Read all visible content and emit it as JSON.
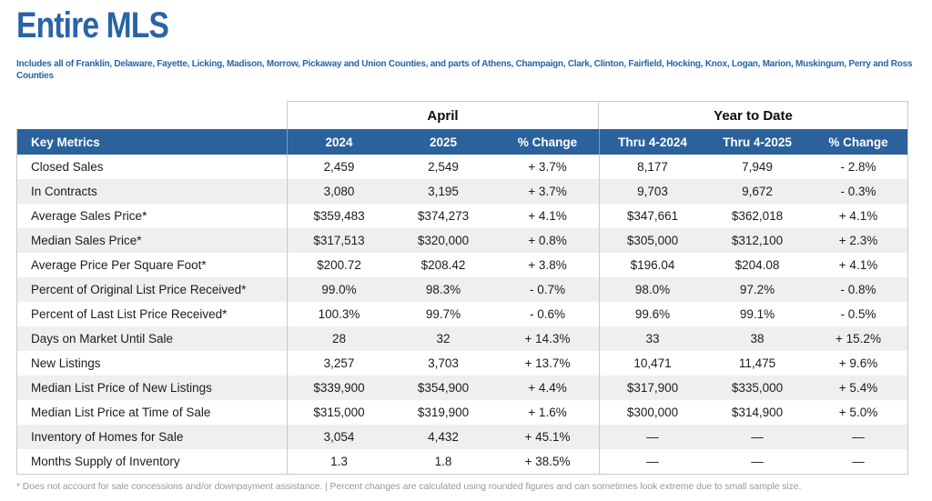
{
  "page": {
    "title": "Entire MLS",
    "subtitle": "Includes all of Franklin, Delaware, Fayette, Licking, Madison, Morrow, Pickaway and Union Counties, and parts of Athens, Champaign, Clark, Clinton, Fairfield, Hocking, Knox, Logan, Marion, Muskingum, Perry and Ross Counties",
    "footnote": "* Does not account for sale concessions and/or downpayment assistance. | Percent changes are calculated using rounded figures and can sometimes look extreme due to small sample size."
  },
  "colors": {
    "title_blue": "#2a64a6",
    "header_bar_blue": "#2b629c",
    "alt_row_gray": "#efefef",
    "border_gray": "#c9c9c9",
    "footnote_gray": "#9a9a9a",
    "body_text": "#1c1c1c"
  },
  "table": {
    "group_headers": {
      "april": "April",
      "ytd": "Year to Date"
    },
    "columns": [
      "Key Metrics",
      "2024",
      "2025",
      "% Change",
      "Thru 4-2024",
      "Thru 4-2025",
      "% Change"
    ],
    "rows": [
      [
        "Closed Sales",
        "2,459",
        "2,549",
        "+ 3.7%",
        "8,177",
        "7,949",
        "- 2.8%"
      ],
      [
        "In Contracts",
        "3,080",
        "3,195",
        "+ 3.7%",
        "9,703",
        "9,672",
        "- 0.3%"
      ],
      [
        "Average Sales Price*",
        "$359,483",
        "$374,273",
        "+ 4.1%",
        "$347,661",
        "$362,018",
        "+ 4.1%"
      ],
      [
        "Median Sales Price*",
        "$317,513",
        "$320,000",
        "+ 0.8%",
        "$305,000",
        "$312,100",
        "+ 2.3%"
      ],
      [
        "Average Price Per Square Foot*",
        "$200.72",
        "$208.42",
        "+ 3.8%",
        "$196.04",
        "$204.08",
        "+ 4.1%"
      ],
      [
        "Percent of Original List Price Received*",
        "99.0%",
        "98.3%",
        "- 0.7%",
        "98.0%",
        "97.2%",
        "- 0.8%"
      ],
      [
        "Percent of Last List Price Received*",
        "100.3%",
        "99.7%",
        "- 0.6%",
        "99.6%",
        "99.1%",
        "- 0.5%"
      ],
      [
        "Days on Market Until Sale",
        "28",
        "32",
        "+ 14.3%",
        "33",
        "38",
        "+ 15.2%"
      ],
      [
        "New Listings",
        "3,257",
        "3,703",
        "+ 13.7%",
        "10,471",
        "11,475",
        "+ 9.6%"
      ],
      [
        "Median List Price of New Listings",
        "$339,900",
        "$354,900",
        "+ 4.4%",
        "$317,900",
        "$335,000",
        "+ 5.4%"
      ],
      [
        "Median List Price at Time of Sale",
        "$315,000",
        "$319,900",
        "+ 1.6%",
        "$300,000",
        "$314,900",
        "+ 5.0%"
      ],
      [
        "Inventory of Homes for Sale",
        "3,054",
        "4,432",
        "+ 45.1%",
        "—",
        "—",
        "—"
      ],
      [
        "Months Supply of Inventory",
        "1.3",
        "1.8",
        "+ 38.5%",
        "—",
        "—",
        "—"
      ]
    ]
  }
}
